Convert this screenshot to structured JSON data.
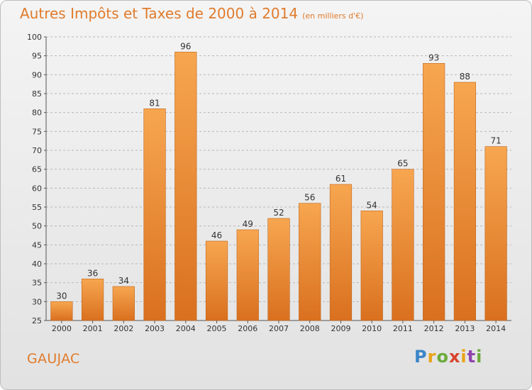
{
  "title": "Autres Impôts et Taxes de 2000 à 2014",
  "subtitle": "(en milliers d'€)",
  "location": "GAUJAC",
  "logo": {
    "text": "Proxiti",
    "letters": [
      "P",
      "r",
      "o",
      "x",
      "i",
      "t",
      "i"
    ],
    "colors": [
      "#3a86c8",
      "#e8a317",
      "#6cab3a",
      "#d9432b",
      "#8e44ad"
    ]
  },
  "colors": {
    "accent": "#e07b2c",
    "bar_top": "#f7a650",
    "bar_bottom": "#d9701f",
    "grid": "#b8b8b8"
  },
  "chart_data": {
    "type": "bar",
    "title": "Autres Impôts et Taxes de 2000 à 2014",
    "subtitle": "(en milliers d'€)",
    "xlabel": "",
    "ylabel": "",
    "categories": [
      "2000",
      "2001",
      "2002",
      "2003",
      "2004",
      "2005",
      "2006",
      "2007",
      "2008",
      "2009",
      "2010",
      "2011",
      "2012",
      "2013",
      "2014"
    ],
    "values": [
      30,
      36,
      34,
      81,
      96,
      46,
      49,
      52,
      56,
      61,
      54,
      65,
      93,
      88,
      71
    ],
    "ylim": [
      25,
      100
    ],
    "yticks": [
      25,
      30,
      35,
      40,
      45,
      50,
      55,
      60,
      65,
      70,
      75,
      80,
      85,
      90,
      95,
      100
    ],
    "grid": true,
    "legend": "none"
  }
}
